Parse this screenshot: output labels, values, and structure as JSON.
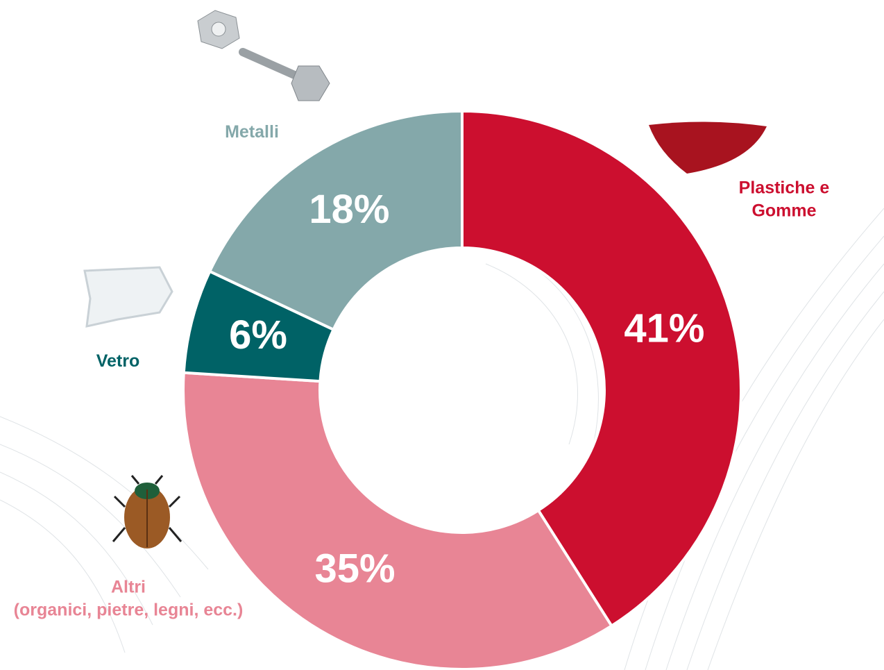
{
  "chart_data": {
    "type": "donut",
    "categories": [
      "Plastiche e Gomme",
      "Altri\n(organici, pietre, legni, ecc.)",
      "Vetro",
      "Metalli"
    ],
    "values": [
      41,
      35,
      6,
      18
    ],
    "value_labels": [
      "41%",
      "35%",
      "6%",
      "18%"
    ],
    "colors": [
      "#cc0f2f",
      "#e88595",
      "#006266",
      "#84a8aa"
    ]
  }
}
